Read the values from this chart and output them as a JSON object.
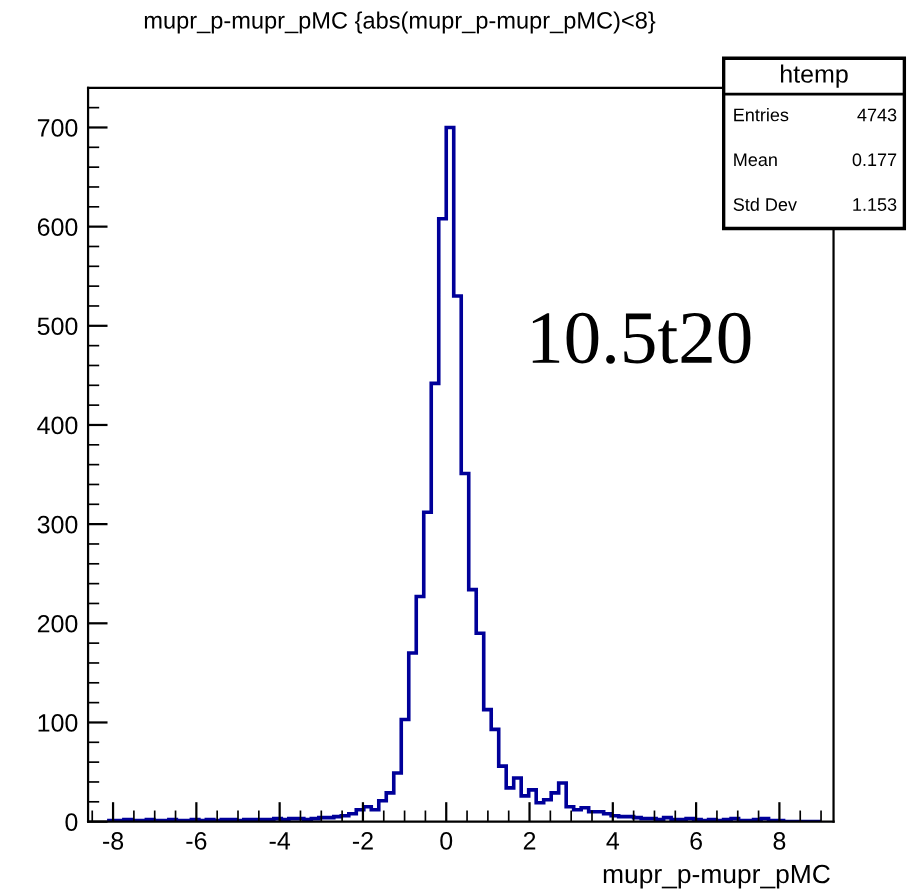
{
  "chart_data": {
    "type": "histogram",
    "title": "mupr_p-mupr_pMC {abs(mupr_p-mupr_pMC)<8}",
    "xlabel": "mupr_p-mupr_pMC",
    "bins": [
      -8.1,
      -7.92,
      -7.74,
      -7.56,
      -7.38,
      -7.2,
      -7.02,
      -6.84,
      -6.66,
      -6.48,
      -6.3,
      -6.12,
      -5.94,
      -5.76,
      -5.58,
      -5.4,
      -5.22,
      -5.04,
      -4.86,
      -4.68,
      -4.5,
      -4.32,
      -4.14,
      -3.96,
      -3.78,
      -3.6,
      -3.42,
      -3.24,
      -3.06,
      -2.88,
      -2.7,
      -2.52,
      -2.34,
      -2.16,
      -1.98,
      -1.8,
      -1.62,
      -1.44,
      -1.26,
      -1.08,
      -0.9,
      -0.72,
      -0.54,
      -0.36,
      -0.18,
      0.0,
      0.18,
      0.36,
      0.54,
      0.72,
      0.9,
      1.08,
      1.26,
      1.44,
      1.62,
      1.8,
      1.98,
      2.16,
      2.34,
      2.52,
      2.7,
      2.88,
      3.06,
      3.24,
      3.42,
      3.6,
      3.78,
      3.96,
      4.14,
      4.32,
      4.5,
      4.68,
      4.86,
      5.04,
      5.22,
      5.4,
      5.58,
      5.76,
      5.94,
      6.12,
      6.3,
      6.48,
      6.66,
      6.84,
      7.02,
      7.2,
      7.38,
      7.56,
      7.74,
      7.92,
      8.1,
      8.28,
      8.46,
      8.64,
      8.82,
      9.0
    ],
    "values": [
      1,
      1,
      2,
      1,
      1,
      2,
      1,
      1,
      2,
      1,
      1,
      2,
      1,
      2,
      1,
      2,
      2,
      1,
      2,
      2,
      2,
      2,
      3,
      2,
      3,
      3,
      2,
      3,
      4,
      4,
      5,
      6,
      8,
      12,
      15,
      12,
      21,
      29,
      49,
      103,
      170,
      227,
      312,
      442,
      608,
      700,
      530,
      351,
      234,
      190,
      113,
      93,
      56,
      34,
      44,
      26,
      32,
      19,
      22,
      29,
      39,
      15,
      12,
      14,
      10,
      10,
      8,
      6,
      5,
      5,
      4,
      3,
      3,
      2,
      4,
      2,
      2,
      3,
      2,
      1,
      2,
      1,
      2,
      3,
      1,
      1,
      2,
      3,
      1,
      1,
      0,
      0,
      0,
      0,
      0
    ],
    "color": "#000099",
    "xlim": [
      -8.6,
      9.3
    ],
    "ylim": [
      0,
      740
    ],
    "xticks": [
      -8,
      -6,
      -4,
      -2,
      0,
      2,
      4,
      6,
      8
    ],
    "yticks": [
      0,
      100,
      200,
      300,
      400,
      500,
      600,
      700
    ],
    "grid": false,
    "annotations": [
      "10.5t20",
      "htemp",
      "Entries",
      "4743",
      "Mean",
      "0.177",
      "Std Dev",
      "1.153"
    ]
  }
}
